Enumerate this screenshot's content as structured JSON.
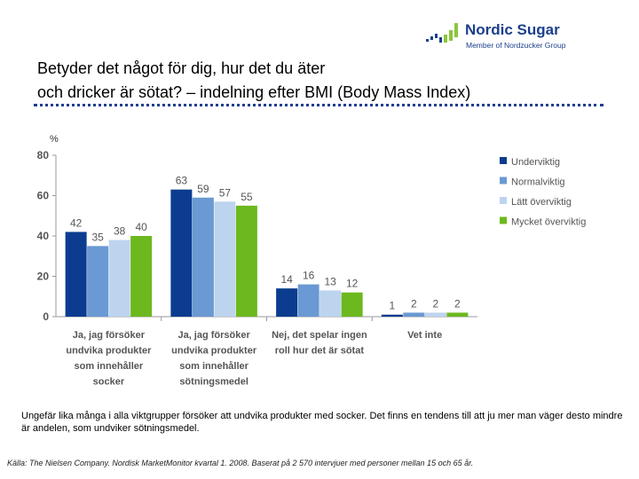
{
  "logo": {
    "name": "Nordic Sugar",
    "subtitle": "Member of Nordzucker Group",
    "colors": {
      "blue": "#1b3f8c",
      "green": "#8cc63f"
    }
  },
  "title": {
    "line1": "Betyder det något för dig, hur det du äter",
    "line2": "och dricker är sötat? – indelning efter BMI (Body Mass Index)"
  },
  "chart_data": {
    "type": "bar",
    "unit_label": "%",
    "ylim": [
      0,
      80
    ],
    "yticks": [
      0,
      20,
      40,
      60,
      80
    ],
    "grid": false,
    "legend_position": "right",
    "categories": [
      [
        "Ja, jag försöker",
        "undvika produkter",
        "som innehåller",
        "socker"
      ],
      [
        "Ja, jag försöker",
        "undvika produkter",
        "som innehåller",
        "sötningsmedel"
      ],
      [
        "Nej, det spelar ingen",
        "roll hur det är sötat"
      ],
      [
        "Vet inte"
      ]
    ],
    "series": [
      {
        "name": "Underviktig",
        "color": "#0b3c8f",
        "values": [
          42,
          63,
          14,
          1
        ]
      },
      {
        "name": "Normalviktig",
        "color": "#6a99d3",
        "values": [
          35,
          59,
          16,
          2
        ]
      },
      {
        "name": "Lätt överviktig",
        "color": "#bdd4ef",
        "values": [
          38,
          57,
          13,
          2
        ]
      },
      {
        "name": "Mycket överviktig",
        "color": "#6cb81e",
        "values": [
          40,
          55,
          12,
          2
        ]
      }
    ]
  },
  "note": "Ungefär lika många i alla viktgrupper försöker att undvika produkter med socker. Det finns en tendens till att ju mer man väger desto mindre är andelen, som undviker sötningsmedel.",
  "source": "Källa: The Nielsen Company. Nordisk MarketMonitor kvartal 1. 2008. Baserat på 2 570 intervjuer med personer mellan 15 och 65 år."
}
